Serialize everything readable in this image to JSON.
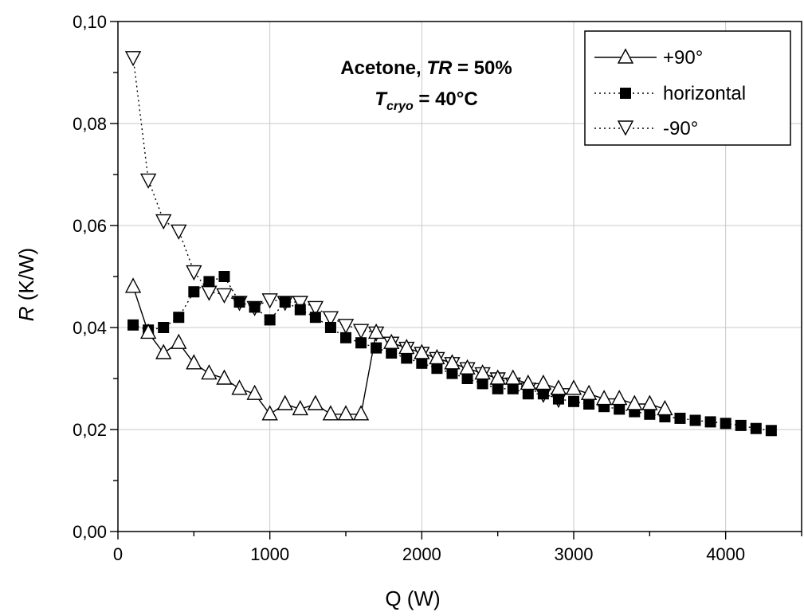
{
  "chart_data": {
    "type": "scatter",
    "xlabel": "Q  (W)",
    "ylabel_italic": "R",
    "ylabel_rest": "  (K/W)",
    "xlim": [
      0,
      4500
    ],
    "ylim": [
      0.0,
      0.1
    ],
    "grid": true,
    "legend_position": "top-right",
    "xticks": [
      0,
      1000,
      2000,
      3000,
      4000
    ],
    "xtick_labels": [
      "0",
      "1000",
      "2000",
      "3000",
      "4000"
    ],
    "yticks": [
      0.0,
      0.02,
      0.04,
      0.06,
      0.08,
      0.1
    ],
    "ytick_labels": [
      "0,00",
      "0,02",
      "0,04",
      "0,06",
      "0,08",
      "0,10"
    ],
    "annotation": {
      "line1_a": "Acetone, ",
      "line1_b": "TR",
      "line1_c": " = 50%",
      "line2_a": "T",
      "line2_sub": "cryo",
      "line2_c": " = 40°C"
    },
    "series": [
      {
        "name": "+90°",
        "marker": "triangle-up",
        "line": "solid",
        "x": [
          100,
          200,
          300,
          400,
          500,
          600,
          700,
          800,
          900,
          1000,
          1100,
          1200,
          1300,
          1400,
          1500,
          1600,
          1700,
          1800,
          1900,
          2000,
          2100,
          2200,
          2300,
          2400,
          2500,
          2600,
          2700,
          2800,
          2900,
          3000,
          3100,
          3200,
          3300,
          3400,
          3500,
          3600
        ],
        "y": [
          0.048,
          0.039,
          0.035,
          0.037,
          0.033,
          0.031,
          0.03,
          0.028,
          0.027,
          0.023,
          0.025,
          0.024,
          0.025,
          0.023,
          0.023,
          0.023,
          0.039,
          0.037,
          0.036,
          0.035,
          0.034,
          0.033,
          0.032,
          0.031,
          0.03,
          0.03,
          0.029,
          0.029,
          0.028,
          0.028,
          0.027,
          0.026,
          0.026,
          0.025,
          0.025,
          0.024
        ]
      },
      {
        "name": "horizontal",
        "marker": "square-filled",
        "line": "dotted",
        "x": [
          100,
          200,
          300,
          400,
          500,
          600,
          700,
          800,
          900,
          1000,
          1100,
          1200,
          1300,
          1400,
          1500,
          1600,
          1700,
          1800,
          1900,
          2000,
          2100,
          2200,
          2300,
          2400,
          2500,
          2600,
          2700,
          2800,
          2900,
          3000,
          3100,
          3200,
          3300,
          3400,
          3500,
          3600,
          3700,
          3800,
          3900,
          4000,
          4100,
          4200,
          4300
        ],
        "y": [
          0.0405,
          0.0395,
          0.04,
          0.042,
          0.047,
          0.049,
          0.05,
          0.045,
          0.044,
          0.0415,
          0.045,
          0.0435,
          0.042,
          0.04,
          0.038,
          0.037,
          0.036,
          0.035,
          0.034,
          0.033,
          0.032,
          0.031,
          0.03,
          0.029,
          0.028,
          0.028,
          0.027,
          0.027,
          0.026,
          0.0255,
          0.025,
          0.0245,
          0.024,
          0.0235,
          0.023,
          0.0225,
          0.0222,
          0.0218,
          0.0215,
          0.0212,
          0.0208,
          0.0202,
          0.0198
        ]
      },
      {
        "name": "-90°",
        "marker": "triangle-down",
        "line": "dotted",
        "x": [
          100,
          200,
          300,
          400,
          500,
          600,
          700,
          800,
          900,
          1000,
          1100,
          1200,
          1300,
          1400,
          1500,
          1600,
          1700,
          1800,
          1900,
          2000,
          2100,
          2200,
          2300,
          2400,
          2500,
          2600,
          2700,
          2800,
          2900
        ],
        "y": [
          0.093,
          0.069,
          0.061,
          0.059,
          0.051,
          0.047,
          0.0465,
          0.045,
          0.044,
          0.0455,
          0.045,
          0.045,
          0.044,
          0.042,
          0.0405,
          0.0395,
          0.039,
          0.037,
          0.036,
          0.035,
          0.034,
          0.033,
          0.032,
          0.031,
          0.03,
          0.029,
          0.028,
          0.027,
          0.026
        ]
      }
    ]
  }
}
